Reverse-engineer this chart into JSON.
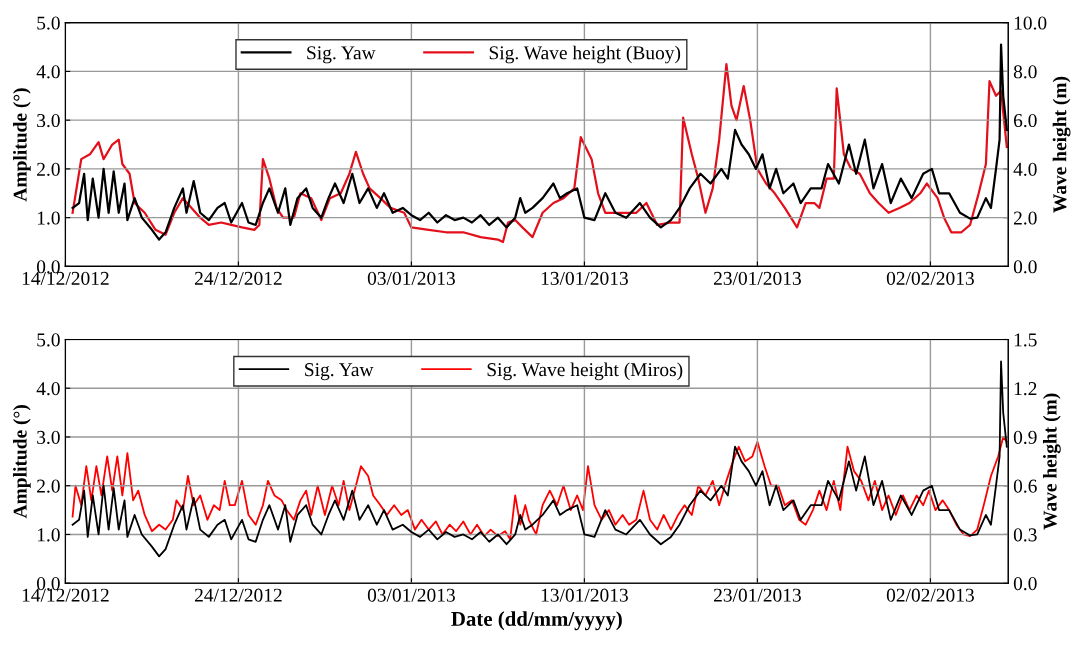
{
  "chart_data": [
    {
      "type": "line",
      "ylabel": "Amplitude (°)",
      "y2label": "Wave height (m)",
      "xlim": [
        "2012-12-14",
        "2013-02-06T12:00"
      ],
      "xticks": [
        {
          "value": "2012-12-14",
          "label": "14/12/2012"
        },
        {
          "value": "2012-12-24",
          "label": "24/12/2012"
        },
        {
          "value": "2013-01-03",
          "label": "03/01/2013"
        },
        {
          "value": "2013-01-13",
          "label": "13/01/2013"
        },
        {
          "value": "2013-01-23",
          "label": "23/01/2013"
        },
        {
          "value": "2013-02-02",
          "label": "02/02/2013"
        }
      ],
      "ylim": [
        0,
        5
      ],
      "yticks": [
        {
          "value": 0,
          "label": "0.0"
        },
        {
          "value": 1,
          "label": "1.0"
        },
        {
          "value": 2,
          "label": "2.0"
        },
        {
          "value": 3,
          "label": "3.0"
        },
        {
          "value": 4,
          "label": "4.0"
        },
        {
          "value": 5,
          "label": "5.0"
        }
      ],
      "y2lim": [
        0,
        10
      ],
      "y2ticks": [
        {
          "value": 0,
          "label": "0.0"
        },
        {
          "value": 2,
          "label": "2.0"
        },
        {
          "value": 4,
          "label": "4.0"
        },
        {
          "value": 6,
          "label": "6.0"
        },
        {
          "value": 8,
          "label": "8.0"
        },
        {
          "value": 10,
          "label": "10.0"
        }
      ],
      "grid": true,
      "legend": "top",
      "series": [
        {
          "name": "Sig. Yaw",
          "color": "#000000",
          "x": [
            "2012-12-14T10:00",
            "2012-12-14T19:00",
            "2012-12-15T02:00",
            "2012-12-15T07:00",
            "2012-12-15T14:00",
            "2012-12-15T22:00",
            "2012-12-16T05:00",
            "2012-12-16T12:00",
            "2012-12-16T19:00",
            "2012-12-17T02:00",
            "2012-12-17T10:00",
            "2012-12-17T14:00",
            "2012-12-18T00:00",
            "2012-12-18T10:00",
            "2012-12-19T00:00",
            "2012-12-19T10:00",
            "2012-12-19T19:00",
            "2012-12-20T07:00",
            "2012-12-20T19:00",
            "2012-12-21T00:00",
            "2012-12-21T10:00",
            "2012-12-21T19:00",
            "2012-12-22T07:00",
            "2012-12-22T19:00",
            "2012-12-23T05:00",
            "2012-12-23T14:00",
            "2012-12-24T05:00",
            "2012-12-24T14:00",
            "2012-12-25T00:00",
            "2012-12-25T10:00",
            "2012-12-25T19:00",
            "2012-12-26T07:00",
            "2012-12-26T17:00",
            "2012-12-27T00:00",
            "2012-12-27T10:00",
            "2012-12-27T22:00",
            "2012-12-28T07:00",
            "2012-12-28T19:00",
            "2012-12-29T05:00",
            "2012-12-29T14:00",
            "2012-12-30T02:00",
            "2012-12-30T14:00",
            "2012-12-31T00:00",
            "2012-12-31T12:00",
            "2013-01-01T00:00",
            "2013-01-01T10:00",
            "2013-01-01T22:00",
            "2013-01-02T12:00",
            "2013-01-03T00:00",
            "2013-01-03T12:00",
            "2013-01-04T00:00",
            "2013-01-04T12:00",
            "2013-01-05T00:00",
            "2013-01-05T12:00",
            "2013-01-06T00:00",
            "2013-01-06T12:00",
            "2013-01-07T00:00",
            "2013-01-07T12:00",
            "2013-01-08T00:00",
            "2013-01-08T12:00",
            "2013-01-09T00:00",
            "2013-01-09T07:00",
            "2013-01-09T14:00",
            "2013-01-10T00:00",
            "2013-01-10T14:00",
            "2013-01-11T05:00",
            "2013-01-11T14:00",
            "2013-01-12T00:00",
            "2013-01-12T14:00",
            "2013-01-13T00:00",
            "2013-01-13T14:00",
            "2013-01-14T05:00",
            "2013-01-14T19:00",
            "2013-01-15T10:00",
            "2013-01-16T05:00",
            "2013-01-16T19:00",
            "2013-01-17T10:00",
            "2013-01-18T00:00",
            "2013-01-18T12:00",
            "2013-01-19T02:00",
            "2013-01-19T17:00",
            "2013-01-20T07:00",
            "2013-01-20T22:00",
            "2013-01-21T07:00",
            "2013-01-21T17:00",
            "2013-01-22T02:00",
            "2013-01-22T12:00",
            "2013-01-22T22:00",
            "2013-01-23T07:00",
            "2013-01-23T17:00",
            "2013-01-24T02:00",
            "2013-01-24T12:00",
            "2013-01-25T02:00",
            "2013-01-25T12:00",
            "2013-01-26T02:00",
            "2013-01-26T17:00",
            "2013-01-27T02:00",
            "2013-01-27T17:00",
            "2013-01-28T07:00",
            "2013-01-28T17:00",
            "2013-01-29T05:00",
            "2013-01-29T17:00",
            "2013-01-30T05:00",
            "2013-01-30T17:00",
            "2013-01-31T07:00",
            "2013-01-31T22:00",
            "2013-02-01T14:00",
            "2013-02-02T02:00",
            "2013-02-02T12:00",
            "2013-02-03T02:00",
            "2013-02-03T17:00",
            "2013-02-04T07:00",
            "2013-02-04T17:00",
            "2013-02-05T05:00",
            "2013-02-05T12:00",
            "2013-02-05T19:00",
            "2013-02-06T00:00",
            "2013-02-06T02:00",
            "2013-02-06T05:00",
            "2013-02-06T10:00"
          ],
          "values": [
            1.2,
            1.3,
            1.9,
            0.95,
            1.8,
            1.0,
            2.0,
            1.1,
            1.95,
            1.1,
            1.7,
            0.95,
            1.4,
            1.0,
            0.75,
            0.55,
            0.7,
            1.2,
            1.6,
            1.1,
            1.75,
            1.1,
            0.95,
            1.2,
            1.3,
            0.9,
            1.3,
            0.9,
            0.85,
            1.3,
            1.6,
            1.1,
            1.6,
            0.85,
            1.4,
            1.6,
            1.2,
            1.0,
            1.4,
            1.7,
            1.3,
            1.9,
            1.3,
            1.6,
            1.2,
            1.5,
            1.1,
            1.2,
            1.05,
            0.95,
            1.1,
            0.9,
            1.05,
            0.95,
            1.0,
            0.9,
            1.05,
            0.85,
            1.0,
            0.8,
            1.0,
            1.4,
            1.1,
            1.2,
            1.4,
            1.7,
            1.4,
            1.5,
            1.6,
            1.0,
            0.95,
            1.5,
            1.1,
            1.0,
            1.3,
            1.0,
            0.8,
            0.95,
            1.2,
            1.6,
            1.9,
            1.7,
            2.0,
            1.8,
            2.8,
            2.5,
            2.3,
            2.0,
            2.3,
            1.6,
            2.0,
            1.5,
            1.7,
            1.3,
            1.6,
            1.6,
            2.1,
            1.7,
            2.5,
            1.9,
            2.6,
            1.6,
            2.1,
            1.3,
            1.8,
            1.4,
            1.9,
            2.0,
            1.5,
            1.5,
            1.1,
            0.98,
            1.0,
            1.4,
            1.2,
            2.0,
            2.6,
            4.55,
            3.5,
            2.8
          ]
        },
        {
          "name": "Sig. Wave height (Buoy)",
          "color": "#e3101b",
          "axis": "y2",
          "x": [
            "2012-12-14T10:00",
            "2012-12-14T22:00",
            "2012-12-15T10:00",
            "2012-12-15T22:00",
            "2012-12-16T05:00",
            "2012-12-16T17:00",
            "2012-12-17T02:00",
            "2012-12-17T07:00",
            "2012-12-17T17:00",
            "2012-12-18T00:00",
            "2012-12-18T14:00",
            "2012-12-19T05:00",
            "2012-12-19T19:00",
            "2012-12-20T07:00",
            "2012-12-20T19:00",
            "2012-12-21T07:00",
            "2012-12-21T19:00",
            "2012-12-22T07:00",
            "2012-12-23T00:00",
            "2012-12-23T14:00",
            "2012-12-24T05:00",
            "2012-12-24T22:00",
            "2012-12-25T05:00",
            "2012-12-25T10:00",
            "2012-12-25T19:00",
            "2012-12-26T05:00",
            "2012-12-26T14:00",
            "2012-12-27T05:00",
            "2012-12-27T14:00",
            "2012-12-28T05:00",
            "2012-12-28T19:00",
            "2012-12-29T07:00",
            "2012-12-29T22:00",
            "2012-12-30T10:00",
            "2012-12-30T19:00",
            "2012-12-31T05:00",
            "2012-12-31T14:00",
            "2013-01-01T05:00",
            "2013-01-01T19:00",
            "2013-01-02T14:00",
            "2013-01-03T00:00",
            "2013-01-04T00:00",
            "2013-01-05T00:00",
            "2013-01-06T00:00",
            "2013-01-07T00:00",
            "2013-01-08T00:00",
            "2013-01-08T07:00",
            "2013-01-08T14:00",
            "2013-01-09T00:00",
            "2013-01-09T10:00",
            "2013-01-10T00:00",
            "2013-01-10T14:00",
            "2013-01-11T05:00",
            "2013-01-11T19:00",
            "2013-01-12T10:00",
            "2013-01-12T19:00",
            "2013-01-13T10:00",
            "2013-01-13T19:00",
            "2013-01-14T05:00",
            "2013-01-15T00:00",
            "2013-01-16T00:00",
            "2013-01-16T14:00",
            "2013-01-17T05:00",
            "2013-01-18T00:00",
            "2013-01-18T12:00",
            "2013-01-18T17:00",
            "2013-01-19T05:00",
            "2013-01-19T14:00",
            "2013-01-20T00:00",
            "2013-01-20T10:00",
            "2013-01-20T19:00",
            "2013-01-21T05:00",
            "2013-01-21T12:00",
            "2013-01-21T19:00",
            "2013-01-22T05:00",
            "2013-01-22T14:00",
            "2013-01-23T00:00",
            "2013-01-23T12:00",
            "2013-01-24T00:00",
            "2013-01-24T14:00",
            "2013-01-25T07:00",
            "2013-01-25T19:00",
            "2013-01-26T07:00",
            "2013-01-26T14:00",
            "2013-01-27T00:00",
            "2013-01-27T10:00",
            "2013-01-27T14:00",
            "2013-01-28T00:00",
            "2013-01-28T10:00",
            "2013-01-28T22:00",
            "2013-01-29T12:00",
            "2013-01-30T00:00",
            "2013-01-30T14:00",
            "2013-01-31T05:00",
            "2013-01-31T19:00",
            "2013-02-01T10:00",
            "2013-02-01T19:00",
            "2013-02-02T10:00",
            "2013-02-02T19:00",
            "2013-02-03T05:00",
            "2013-02-03T19:00",
            "2013-02-04T07:00",
            "2013-02-04T19:00",
            "2013-02-05T05:00",
            "2013-02-05T10:00",
            "2013-02-05T19:00",
            "2013-02-06T02:00",
            "2013-02-06T10:00"
          ],
          "values": [
            2.2,
            4.4,
            4.6,
            5.1,
            4.4,
            5.0,
            5.2,
            4.2,
            3.8,
            2.6,
            2.2,
            1.5,
            1.3,
            2.2,
            2.8,
            2.4,
            2.0,
            1.7,
            1.8,
            1.7,
            1.6,
            1.5,
            1.7,
            4.4,
            3.6,
            2.4,
            2.0,
            2.0,
            3.0,
            2.8,
            1.9,
            2.8,
            3.0,
            3.8,
            4.7,
            3.8,
            3.2,
            2.8,
            2.4,
            2.2,
            1.6,
            1.5,
            1.4,
            1.4,
            1.2,
            1.1,
            1.0,
            1.8,
            1.9,
            1.6,
            1.2,
            2.2,
            2.6,
            2.8,
            3.2,
            5.3,
            4.4,
            3.0,
            2.2,
            2.2,
            2.2,
            2.6,
            1.7,
            1.8,
            1.8,
            6.1,
            4.6,
            3.6,
            2.2,
            3.2,
            5.2,
            8.3,
            6.6,
            6.0,
            7.4,
            6.0,
            4.0,
            3.4,
            3.0,
            2.4,
            1.6,
            2.6,
            2.6,
            2.4,
            3.6,
            3.6,
            7.3,
            4.6,
            4.0,
            3.8,
            3.0,
            2.6,
            2.2,
            2.4,
            2.6,
            3.0,
            3.4,
            2.8,
            2.0,
            1.4,
            1.4,
            1.7,
            3.0,
            4.2,
            7.6,
            7.0,
            7.2,
            4.9
          ]
        }
      ]
    },
    {
      "type": "line",
      "ylabel": "Amplitude (°)",
      "y2label": "Wave height (m)",
      "xlabel": "Date (dd/mm/yyyy)",
      "xlim": [
        "2012-12-14",
        "2013-02-06T12:00"
      ],
      "xticks": [
        {
          "value": "2012-12-14",
          "label": "14/12/2012"
        },
        {
          "value": "2012-12-24",
          "label": "24/12/2012"
        },
        {
          "value": "2013-01-03",
          "label": "03/01/2013"
        },
        {
          "value": "2013-01-13",
          "label": "13/01/2013"
        },
        {
          "value": "2013-01-23",
          "label": "23/01/2013"
        },
        {
          "value": "2013-02-02",
          "label": "02/02/2013"
        }
      ],
      "ylim": [
        0,
        5
      ],
      "yticks": [
        {
          "value": 0,
          "label": "0.0"
        },
        {
          "value": 1,
          "label": "1.0"
        },
        {
          "value": 2,
          "label": "2.0"
        },
        {
          "value": 3,
          "label": "3.0"
        },
        {
          "value": 4,
          "label": "4.0"
        },
        {
          "value": 5,
          "label": "5.0"
        }
      ],
      "y2lim": [
        0,
        1.5
      ],
      "y2ticks": [
        {
          "value": 0,
          "label": "0.0"
        },
        0.3,
        0.6,
        0.9,
        1.2,
        1.5
      ],
      "grid": true,
      "legend": "top",
      "series": [
        {
          "name": "Sig. Yaw",
          "color": "#000000",
          "x": [
            "2012-12-14T10:00",
            "2012-12-14T19:00",
            "2012-12-15T02:00",
            "2012-12-15T07:00",
            "2012-12-15T14:00",
            "2012-12-15T22:00",
            "2012-12-16T05:00",
            "2012-12-16T12:00",
            "2012-12-16T19:00",
            "2012-12-17T02:00",
            "2012-12-17T10:00",
            "2012-12-17T14:00",
            "2012-12-18T00:00",
            "2012-12-18T10:00",
            "2012-12-19T00:00",
            "2012-12-19T10:00",
            "2012-12-19T19:00",
            "2012-12-20T07:00",
            "2012-12-20T19:00",
            "2012-12-21T00:00",
            "2012-12-21T10:00",
            "2012-12-21T19:00",
            "2012-12-22T07:00",
            "2012-12-22T19:00",
            "2012-12-23T05:00",
            "2012-12-23T14:00",
            "2012-12-24T05:00",
            "2012-12-24T14:00",
            "2012-12-25T00:00",
            "2012-12-25T10:00",
            "2012-12-25T19:00",
            "2012-12-26T07:00",
            "2012-12-26T17:00",
            "2012-12-27T00:00",
            "2012-12-27T10:00",
            "2012-12-27T22:00",
            "2012-12-28T07:00",
            "2012-12-28T19:00",
            "2012-12-29T05:00",
            "2012-12-29T14:00",
            "2012-12-30T02:00",
            "2012-12-30T14:00",
            "2012-12-31T00:00",
            "2012-12-31T12:00",
            "2013-01-01T00:00",
            "2013-01-01T10:00",
            "2013-01-01T22:00",
            "2013-01-02T12:00",
            "2013-01-03T00:00",
            "2013-01-03T12:00",
            "2013-01-04T00:00",
            "2013-01-04T12:00",
            "2013-01-05T00:00",
            "2013-01-05T12:00",
            "2013-01-06T00:00",
            "2013-01-06T12:00",
            "2013-01-07T00:00",
            "2013-01-07T12:00",
            "2013-01-08T00:00",
            "2013-01-08T12:00",
            "2013-01-09T00:00",
            "2013-01-09T07:00",
            "2013-01-09T14:00",
            "2013-01-10T00:00",
            "2013-01-10T14:00",
            "2013-01-11T05:00",
            "2013-01-11T14:00",
            "2013-01-12T00:00",
            "2013-01-12T14:00",
            "2013-01-13T00:00",
            "2013-01-13T14:00",
            "2013-01-14T05:00",
            "2013-01-14T19:00",
            "2013-01-15T10:00",
            "2013-01-16T05:00",
            "2013-01-16T19:00",
            "2013-01-17T10:00",
            "2013-01-18T00:00",
            "2013-01-18T12:00",
            "2013-01-19T02:00",
            "2013-01-19T17:00",
            "2013-01-20T07:00",
            "2013-01-20T22:00",
            "2013-01-21T07:00",
            "2013-01-21T17:00",
            "2013-01-22T02:00",
            "2013-01-22T12:00",
            "2013-01-22T22:00",
            "2013-01-23T07:00",
            "2013-01-23T17:00",
            "2013-01-24T02:00",
            "2013-01-24T12:00",
            "2013-01-25T02:00",
            "2013-01-25T12:00",
            "2013-01-26T02:00",
            "2013-01-26T17:00",
            "2013-01-27T02:00",
            "2013-01-27T17:00",
            "2013-01-28T07:00",
            "2013-01-28T17:00",
            "2013-01-29T05:00",
            "2013-01-29T17:00",
            "2013-01-30T05:00",
            "2013-01-30T17:00",
            "2013-01-31T07:00",
            "2013-01-31T22:00",
            "2013-02-01T14:00",
            "2013-02-02T02:00",
            "2013-02-02T12:00",
            "2013-02-03T02:00",
            "2013-02-03T17:00",
            "2013-02-04T07:00",
            "2013-02-04T17:00",
            "2013-02-05T05:00",
            "2013-02-05T12:00",
            "2013-02-05T19:00",
            "2013-02-06T00:00",
            "2013-02-06T02:00",
            "2013-02-06T05:00",
            "2013-02-06T10:00"
          ],
          "values": [
            1.2,
            1.3,
            1.9,
            0.95,
            1.8,
            1.0,
            2.0,
            1.1,
            1.95,
            1.1,
            1.7,
            0.95,
            1.4,
            1.0,
            0.75,
            0.55,
            0.7,
            1.2,
            1.6,
            1.1,
            1.75,
            1.1,
            0.95,
            1.2,
            1.3,
            0.9,
            1.3,
            0.9,
            0.85,
            1.3,
            1.6,
            1.1,
            1.6,
            0.85,
            1.4,
            1.6,
            1.2,
            1.0,
            1.4,
            1.7,
            1.3,
            1.9,
            1.3,
            1.6,
            1.2,
            1.5,
            1.1,
            1.2,
            1.05,
            0.95,
            1.1,
            0.9,
            1.05,
            0.95,
            1.0,
            0.9,
            1.05,
            0.85,
            1.0,
            0.8,
            1.0,
            1.4,
            1.1,
            1.2,
            1.4,
            1.7,
            1.4,
            1.5,
            1.6,
            1.0,
            0.95,
            1.5,
            1.1,
            1.0,
            1.3,
            1.0,
            0.8,
            0.95,
            1.2,
            1.6,
            1.9,
            1.7,
            2.0,
            1.8,
            2.8,
            2.5,
            2.3,
            2.0,
            2.3,
            1.6,
            2.0,
            1.5,
            1.7,
            1.3,
            1.6,
            1.6,
            2.1,
            1.7,
            2.5,
            1.9,
            2.6,
            1.6,
            2.1,
            1.3,
            1.8,
            1.4,
            1.9,
            2.0,
            1.5,
            1.5,
            1.1,
            0.98,
            1.0,
            1.4,
            1.2,
            2.0,
            2.6,
            4.55,
            3.5,
            2.8
          ]
        },
        {
          "name": "Sig. Wave height (Miros)",
          "color": "#ff0000",
          "axis": "y2",
          "x": [
            "2012-12-14T10:00",
            "2012-12-14T14:00",
            "2012-12-14T22:00",
            "2012-12-15T05:00",
            "2012-12-15T12:00",
            "2012-12-15T19:00",
            "2012-12-16T02:00",
            "2012-12-16T10:00",
            "2012-12-16T17:00",
            "2012-12-17T00:00",
            "2012-12-17T07:00",
            "2012-12-17T14:00",
            "2012-12-17T22:00",
            "2012-12-18T05:00",
            "2012-12-18T14:00",
            "2012-12-19T00:00",
            "2012-12-19T10:00",
            "2012-12-19T19:00",
            "2012-12-20T05:00",
            "2012-12-20T10:00",
            "2012-12-20T19:00",
            "2012-12-21T02:00",
            "2012-12-21T10:00",
            "2012-12-21T19:00",
            "2012-12-22T05:00",
            "2012-12-22T14:00",
            "2012-12-22T22:00",
            "2012-12-23T05:00",
            "2012-12-23T12:00",
            "2012-12-23T19:00",
            "2012-12-24T05:00",
            "2012-12-24T14:00",
            "2012-12-25T00:00",
            "2012-12-25T10:00",
            "2012-12-25T17:00",
            "2012-12-26T02:00",
            "2012-12-26T12:00",
            "2012-12-26T19:00",
            "2012-12-27T05:00",
            "2012-12-27T14:00",
            "2012-12-27T22:00",
            "2012-12-28T05:00",
            "2012-12-28T14:00",
            "2012-12-29T00:00",
            "2012-12-29T10:00",
            "2012-12-29T19:00",
            "2012-12-30T02:00",
            "2012-12-30T10:00",
            "2012-12-30T19:00",
            "2012-12-31T02:00",
            "2012-12-31T12:00",
            "2012-12-31T19:00",
            "2013-01-01T05:00",
            "2013-01-01T14:00",
            "2013-01-02T00:00",
            "2013-01-02T10:00",
            "2013-01-02T19:00",
            "2013-01-03T05:00",
            "2013-01-03T14:00",
            "2013-01-04T00:00",
            "2013-01-04T10:00",
            "2013-01-04T19:00",
            "2013-01-05T05:00",
            "2013-01-05T14:00",
            "2013-01-06T00:00",
            "2013-01-06T10:00",
            "2013-01-06T19:00",
            "2013-01-07T05:00",
            "2013-01-07T14:00",
            "2013-01-08T00:00",
            "2013-01-08T10:00",
            "2013-01-08T17:00",
            "2013-01-09T00:00",
            "2013-01-09T07:00",
            "2013-01-09T14:00",
            "2013-01-09T19:00",
            "2013-01-10T05:00",
            "2013-01-10T14:00",
            "2013-01-11T00:00",
            "2013-01-11T10:00",
            "2013-01-11T19:00",
            "2013-01-12T05:00",
            "2013-01-12T14:00",
            "2013-01-12T22:00",
            "2013-01-13T05:00",
            "2013-01-13T14:00",
            "2013-01-14T00:00",
            "2013-01-14T10:00",
            "2013-01-14T19:00",
            "2013-01-15T05:00",
            "2013-01-15T14:00",
            "2013-01-16T00:00",
            "2013-01-16T10:00",
            "2013-01-16T19:00",
            "2013-01-17T05:00",
            "2013-01-17T14:00",
            "2013-01-18T00:00",
            "2013-01-18T10:00",
            "2013-01-18T19:00",
            "2013-01-19T05:00",
            "2013-01-19T14:00",
            "2013-01-20T00:00",
            "2013-01-20T10:00",
            "2013-01-20T19:00",
            "2013-01-21T05:00",
            "2013-01-21T14:00",
            "2013-01-21T22:00",
            "2013-01-22T07:00",
            "2013-01-22T17:00",
            "2013-01-23T00:00",
            "2013-01-23T10:00",
            "2013-01-23T19:00",
            "2013-01-24T05:00",
            "2013-01-24T14:00",
            "2013-01-25T00:00",
            "2013-01-25T10:00",
            "2013-01-25T19:00",
            "2013-01-26T05:00",
            "2013-01-26T14:00",
            "2013-01-27T00:00",
            "2013-01-27T10:00",
            "2013-01-27T19:00",
            "2013-01-28T05:00",
            "2013-01-28T14:00",
            "2013-01-29T00:00",
            "2013-01-29T10:00",
            "2013-01-29T19:00",
            "2013-01-30T05:00",
            "2013-01-30T14:00",
            "2013-01-31T00:00",
            "2013-01-31T10:00",
            "2013-01-31T19:00",
            "2013-02-01T05:00",
            "2013-02-01T14:00",
            "2013-02-01T22:00",
            "2013-02-02T07:00",
            "2013-02-02T17:00",
            "2013-02-03T02:00",
            "2013-02-03T12:00",
            "2013-02-03T22:00",
            "2013-02-04T07:00",
            "2013-02-04T17:00",
            "2013-02-05T02:00",
            "2013-02-05T12:00",
            "2013-02-05T22:00",
            "2013-02-06T05:00",
            "2013-02-06T10:00"
          ],
          "values": [
            0.41,
            0.6,
            0.48,
            0.72,
            0.51,
            0.72,
            0.54,
            0.78,
            0.57,
            0.78,
            0.54,
            0.8,
            0.51,
            0.57,
            0.42,
            0.32,
            0.36,
            0.33,
            0.39,
            0.51,
            0.45,
            0.66,
            0.48,
            0.54,
            0.39,
            0.48,
            0.45,
            0.63,
            0.48,
            0.48,
            0.63,
            0.42,
            0.36,
            0.48,
            0.63,
            0.54,
            0.51,
            0.45,
            0.39,
            0.51,
            0.57,
            0.42,
            0.6,
            0.42,
            0.6,
            0.48,
            0.63,
            0.45,
            0.6,
            0.72,
            0.66,
            0.54,
            0.48,
            0.42,
            0.48,
            0.42,
            0.45,
            0.33,
            0.39,
            0.33,
            0.38,
            0.3,
            0.36,
            0.32,
            0.38,
            0.3,
            0.36,
            0.29,
            0.33,
            0.29,
            0.32,
            0.27,
            0.54,
            0.36,
            0.48,
            0.39,
            0.3,
            0.48,
            0.57,
            0.48,
            0.6,
            0.45,
            0.54,
            0.45,
            0.72,
            0.48,
            0.39,
            0.45,
            0.36,
            0.42,
            0.36,
            0.39,
            0.57,
            0.39,
            0.33,
            0.42,
            0.33,
            0.42,
            0.48,
            0.42,
            0.6,
            0.54,
            0.63,
            0.48,
            0.63,
            0.75,
            0.84,
            0.75,
            0.78,
            0.87,
            0.72,
            0.6,
            0.6,
            0.48,
            0.51,
            0.39,
            0.36,
            0.45,
            0.57,
            0.45,
            0.63,
            0.45,
            0.84,
            0.69,
            0.63,
            0.51,
            0.63,
            0.45,
            0.54,
            0.42,
            0.54,
            0.45,
            0.54,
            0.48,
            0.57,
            0.45,
            0.51,
            0.45,
            0.36,
            0.3,
            0.29,
            0.33,
            0.48,
            0.66,
            0.78,
            0.9,
            0.87
          ]
        }
      ]
    }
  ]
}
